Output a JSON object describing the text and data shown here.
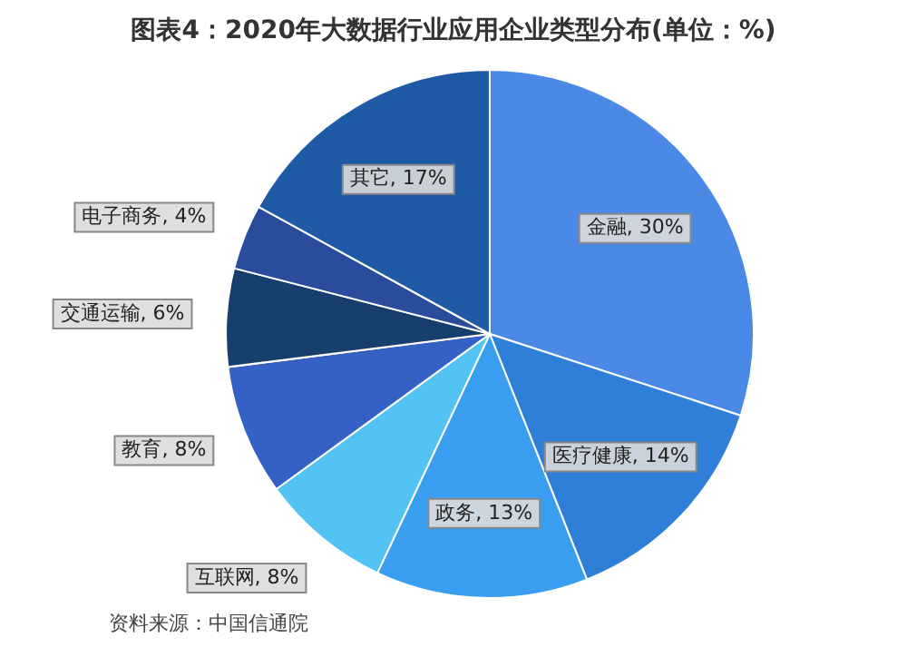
{
  "chart_data": {
    "type": "pie",
    "title": "图表4：2020年大数据行业应用企业类型分布(单位：%)",
    "categories": [
      "金融",
      "医疗健康",
      "政务",
      "互联网",
      "教育",
      "交通运输",
      "电子商务",
      "其它"
    ],
    "values": [
      30,
      14,
      13,
      8,
      8,
      6,
      4,
      17
    ],
    "value_labels": [
      "30%",
      "14%",
      "13%",
      "8%",
      "8%",
      "6%",
      "4%",
      "17%"
    ],
    "colors": [
      "#4a8ae6",
      "#2f7fd8",
      "#3a9ef0",
      "#52c3f2",
      "#3560c4",
      "#173f6e",
      "#2a4c9c",
      "#1f5aa6"
    ],
    "annotations": [
      "资料来源：中国信通院"
    ],
    "legend": false
  }
}
